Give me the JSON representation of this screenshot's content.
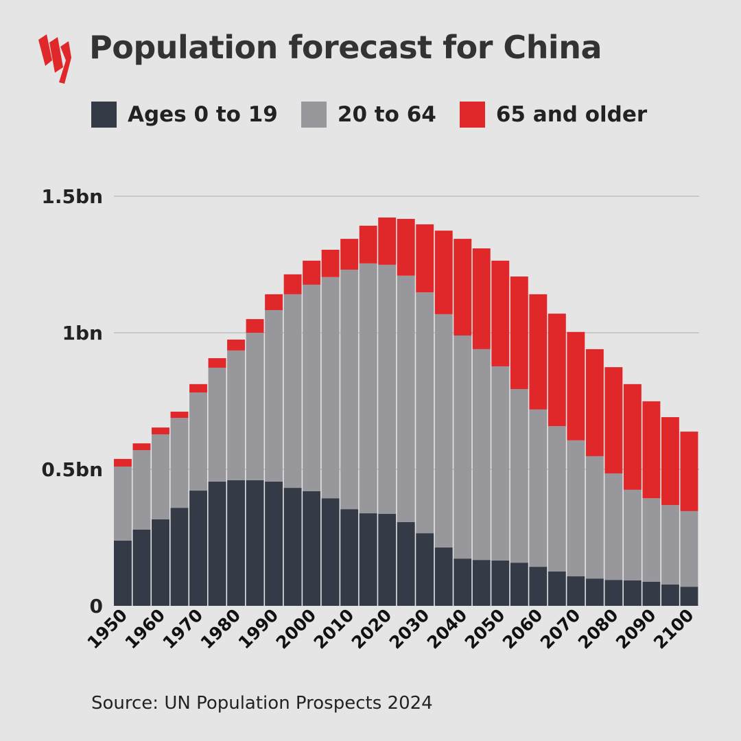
{
  "chart_data": {
    "type": "bar",
    "stacked": true,
    "title": "Population forecast for China",
    "source": "Source: UN Population Prospects 2024",
    "ylim": [
      0,
      1.5
    ],
    "yticks": [
      0,
      0.5,
      1,
      1.5
    ],
    "ytick_labels": [
      "0",
      "0.5bn",
      "1bn",
      "1.5bn"
    ],
    "xtick_labels": [
      "1950",
      "1960",
      "1970",
      "1980",
      "1990",
      "2000",
      "2010",
      "2020",
      "2030",
      "2040",
      "2050",
      "2060",
      "2070",
      "2080",
      "2090",
      "2100"
    ],
    "grid": true,
    "legend_placement": "top",
    "categories": [
      1950,
      1955,
      1960,
      1965,
      1970,
      1975,
      1980,
      1985,
      1990,
      1995,
      2000,
      2005,
      2010,
      2015,
      2020,
      2025,
      2030,
      2035,
      2040,
      2045,
      2050,
      2055,
      2060,
      2065,
      2070,
      2075,
      2080,
      2085,
      2090,
      2095,
      2100
    ],
    "series": [
      {
        "name": "Ages 0 to 19",
        "color": "#343a46",
        "values": [
          0.239,
          0.279,
          0.317,
          0.359,
          0.422,
          0.455,
          0.46,
          0.46,
          0.455,
          0.432,
          0.42,
          0.394,
          0.354,
          0.339,
          0.337,
          0.307,
          0.266,
          0.214,
          0.173,
          0.168,
          0.166,
          0.158,
          0.143,
          0.126,
          0.108,
          0.1,
          0.095,
          0.093,
          0.088,
          0.078,
          0.07
        ]
      },
      {
        "name": "20 to 64",
        "color": "#97979c",
        "values": [
          0.271,
          0.291,
          0.311,
          0.329,
          0.359,
          0.417,
          0.475,
          0.54,
          0.628,
          0.709,
          0.756,
          0.81,
          0.877,
          0.915,
          0.912,
          0.902,
          0.882,
          0.854,
          0.817,
          0.772,
          0.711,
          0.636,
          0.576,
          0.532,
          0.498,
          0.448,
          0.39,
          0.332,
          0.306,
          0.291,
          0.277
        ]
      },
      {
        "name": "65 and older",
        "color": "#e0282a",
        "values": [
          0.028,
          0.025,
          0.025,
          0.023,
          0.031,
          0.035,
          0.04,
          0.05,
          0.058,
          0.073,
          0.088,
          0.1,
          0.113,
          0.138,
          0.173,
          0.208,
          0.249,
          0.306,
          0.354,
          0.369,
          0.387,
          0.412,
          0.422,
          0.412,
          0.397,
          0.392,
          0.389,
          0.387,
          0.355,
          0.322,
          0.291
        ]
      }
    ]
  },
  "logo": {
    "name": "SBS",
    "color": "#e0282a"
  }
}
